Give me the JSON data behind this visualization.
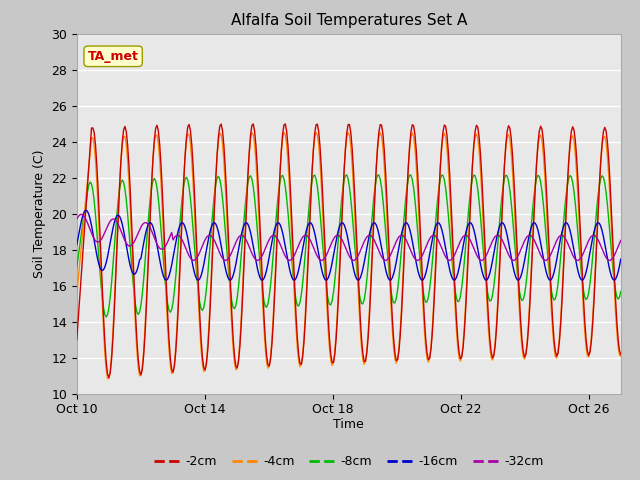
{
  "title": "Alfalfa Soil Temperatures Set A",
  "ylabel": "Soil Temperature (C)",
  "xlabel": "Time",
  "ylim": [
    10,
    30
  ],
  "xlim_days": [
    0,
    17
  ],
  "x_ticks_days": [
    0,
    4,
    8,
    12,
    16
  ],
  "x_tick_labels": [
    "Oct 10",
    "Oct 14",
    "Oct 18",
    "Oct 22",
    "Oct 26"
  ],
  "y_ticks": [
    10,
    12,
    14,
    16,
    18,
    20,
    22,
    24,
    26,
    28,
    30
  ],
  "fig_bg_color": "#c8c8c8",
  "plot_bg_color": "#e8e8e8",
  "line_colors": {
    "-2cm": "#cc0000",
    "-4cm": "#ff8800",
    "-8cm": "#00bb00",
    "-16cm": "#0000cc",
    "-32cm": "#aa00aa"
  },
  "legend_labels": [
    "-2cm",
    "-4cm",
    "-8cm",
    "-16cm",
    "-32cm"
  ],
  "annotation_text": "TA_met",
  "annotation_color": "#cc0000",
  "annotation_bg": "#ffffcc",
  "annotation_border": "#999900"
}
